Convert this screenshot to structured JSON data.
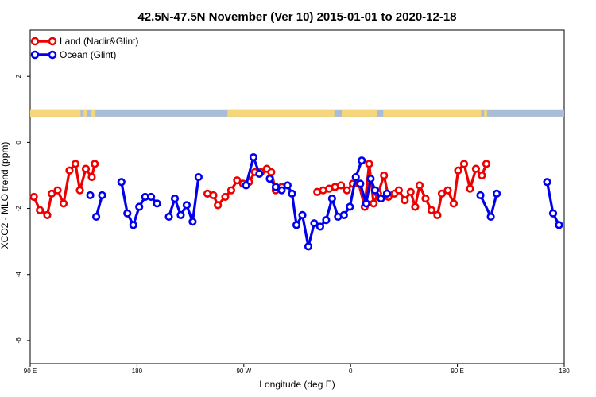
{
  "chart_data": {
    "type": "line",
    "title": "42.5N-47.5N November (Ver 10)   2015-01-01 to 2020-12-18",
    "xlabel": "Longitude (deg E)",
    "ylabel": "XCO2 - MLO trend (ppm)",
    "xlim": [
      90,
      450
    ],
    "ylim": [
      -6.7,
      3.4
    ],
    "x_ticks": [
      90,
      162,
      234,
      306,
      378,
      450
    ],
    "x_tick_labels": [
      "90 E",
      "180",
      "90 W",
      "0",
      "90 E",
      "180"
    ],
    "y_ticks": [
      2,
      0,
      -2,
      -4,
      -6
    ],
    "y_tick_labels": [
      "2",
      "0",
      "-2",
      "-4",
      "-6"
    ],
    "legend_position": "top-left",
    "land_mask_band": {
      "y_top": 1.0,
      "y_bottom": 0.78,
      "land_color": "#f5d67a",
      "ocean_color": "#a9bcd8"
    },
    "series": [
      {
        "name": "Land (Nadir&Glint)",
        "color": "#ee0000",
        "points": [
          [
            92.5,
            -1.65
          ],
          [
            96.5,
            -2.05
          ],
          [
            101.5,
            -2.2
          ],
          [
            104.5,
            -1.55
          ],
          [
            108.5,
            -1.45
          ],
          [
            112.5,
            -1.85
          ],
          [
            116.5,
            -0.85
          ],
          [
            120.5,
            -0.65
          ],
          [
            123.5,
            -1.45
          ],
          [
            127.5,
            -0.8
          ],
          [
            131.5,
            -1.05
          ],
          [
            133.5,
            -0.65
          ],
          null,
          [
            209.5,
            -1.55
          ],
          [
            213.5,
            -1.6
          ],
          [
            216.5,
            -1.9
          ],
          [
            221.5,
            -1.65
          ],
          [
            225.5,
            -1.45
          ],
          [
            229.5,
            -1.15
          ],
          [
            233.5,
            -1.25
          ],
          [
            237.5,
            -1.2
          ],
          [
            241.5,
            -0.9
          ],
          [
            245.5,
            -0.9
          ],
          [
            249.5,
            -0.8
          ],
          [
            252.5,
            -0.9
          ],
          [
            255.5,
            -1.45
          ],
          [
            259.5,
            -1.35
          ],
          null,
          [
            283.5,
            -1.5
          ],
          [
            287.5,
            -1.45
          ],
          [
            291.5,
            -1.4
          ],
          [
            295.5,
            -1.35
          ],
          [
            299.5,
            -1.3
          ],
          [
            303.5,
            -1.45
          ],
          [
            307.5,
            -1.25
          ],
          [
            311.5,
            -1.25
          ],
          [
            315.5,
            -1.95
          ],
          [
            318.5,
            -0.65
          ],
          [
            321.5,
            -1.85
          ],
          [
            324.5,
            -1.55
          ],
          [
            328.5,
            -1.0
          ],
          [
            331.5,
            -1.65
          ],
          [
            335.5,
            -1.55
          ],
          [
            338.5,
            -1.45
          ],
          [
            342.5,
            -1.75
          ],
          [
            346.5,
            -1.5
          ],
          [
            349.5,
            -1.95
          ],
          [
            352.5,
            -1.3
          ],
          [
            356.5,
            -1.7
          ],
          [
            360.5,
            -2.05
          ],
          [
            364.5,
            -2.2
          ],
          [
            367.5,
            -1.55
          ],
          [
            371.5,
            -1.45
          ],
          [
            375.5,
            -1.85
          ],
          [
            378.5,
            -0.85
          ],
          [
            382.5,
            -0.65
          ],
          [
            386.5,
            -1.4
          ],
          [
            390.5,
            -0.8
          ],
          [
            394.5,
            -1.0
          ],
          [
            397.5,
            -0.65
          ]
        ]
      },
      {
        "name": "Ocean (Glint)",
        "color": "#0000ee",
        "points": [
          [
            130.5,
            -1.6
          ],
          null,
          [
            134.5,
            -2.25
          ],
          [
            138.5,
            -1.6
          ],
          null,
          [
            151.5,
            -1.2
          ],
          [
            155.5,
            -2.15
          ],
          [
            159.5,
            -2.5
          ],
          [
            163.5,
            -1.95
          ],
          [
            167.5,
            -1.65
          ],
          [
            171.5,
            -1.65
          ],
          [
            175.5,
            -1.85
          ],
          null,
          [
            183.5,
            -2.25
          ],
          [
            187.5,
            -1.7
          ],
          [
            191.5,
            -2.2
          ],
          [
            195.5,
            -1.9
          ],
          [
            199.5,
            -2.4
          ],
          [
            203.5,
            -1.05
          ],
          null,
          [
            235.5,
            -1.3
          ],
          [
            240.5,
            -0.45
          ],
          [
            244.5,
            -0.95
          ],
          null,
          [
            251.5,
            -1.1
          ],
          [
            255.5,
            -1.35
          ],
          [
            259.5,
            -1.45
          ],
          [
            263.5,
            -1.3
          ],
          [
            266.5,
            -1.55
          ],
          [
            269.5,
            -2.5
          ],
          [
            273.5,
            -2.2
          ],
          [
            277.5,
            -3.15
          ],
          [
            281.5,
            -2.45
          ],
          [
            285.5,
            -2.55
          ],
          [
            289.5,
            -2.35
          ],
          [
            293.5,
            -1.7
          ],
          [
            297.5,
            -2.25
          ],
          [
            301.5,
            -2.2
          ],
          [
            305.5,
            -1.95
          ],
          [
            309.5,
            -1.05
          ],
          [
            313.5,
            -0.55
          ],
          null,
          [
            312.5,
            -1.25
          ],
          [
            316.5,
            -1.85
          ],
          [
            319.5,
            -1.1
          ],
          [
            322.5,
            -1.45
          ],
          [
            326.5,
            -1.7
          ],
          [
            330.5,
            -1.55
          ],
          null,
          [
            393.5,
            -1.6
          ],
          [
            400.5,
            -2.25
          ],
          [
            404.5,
            -1.55
          ],
          null,
          [
            438.5,
            -1.2
          ],
          [
            442.5,
            -2.15
          ],
          [
            446.5,
            -2.5
          ]
        ]
      }
    ]
  }
}
